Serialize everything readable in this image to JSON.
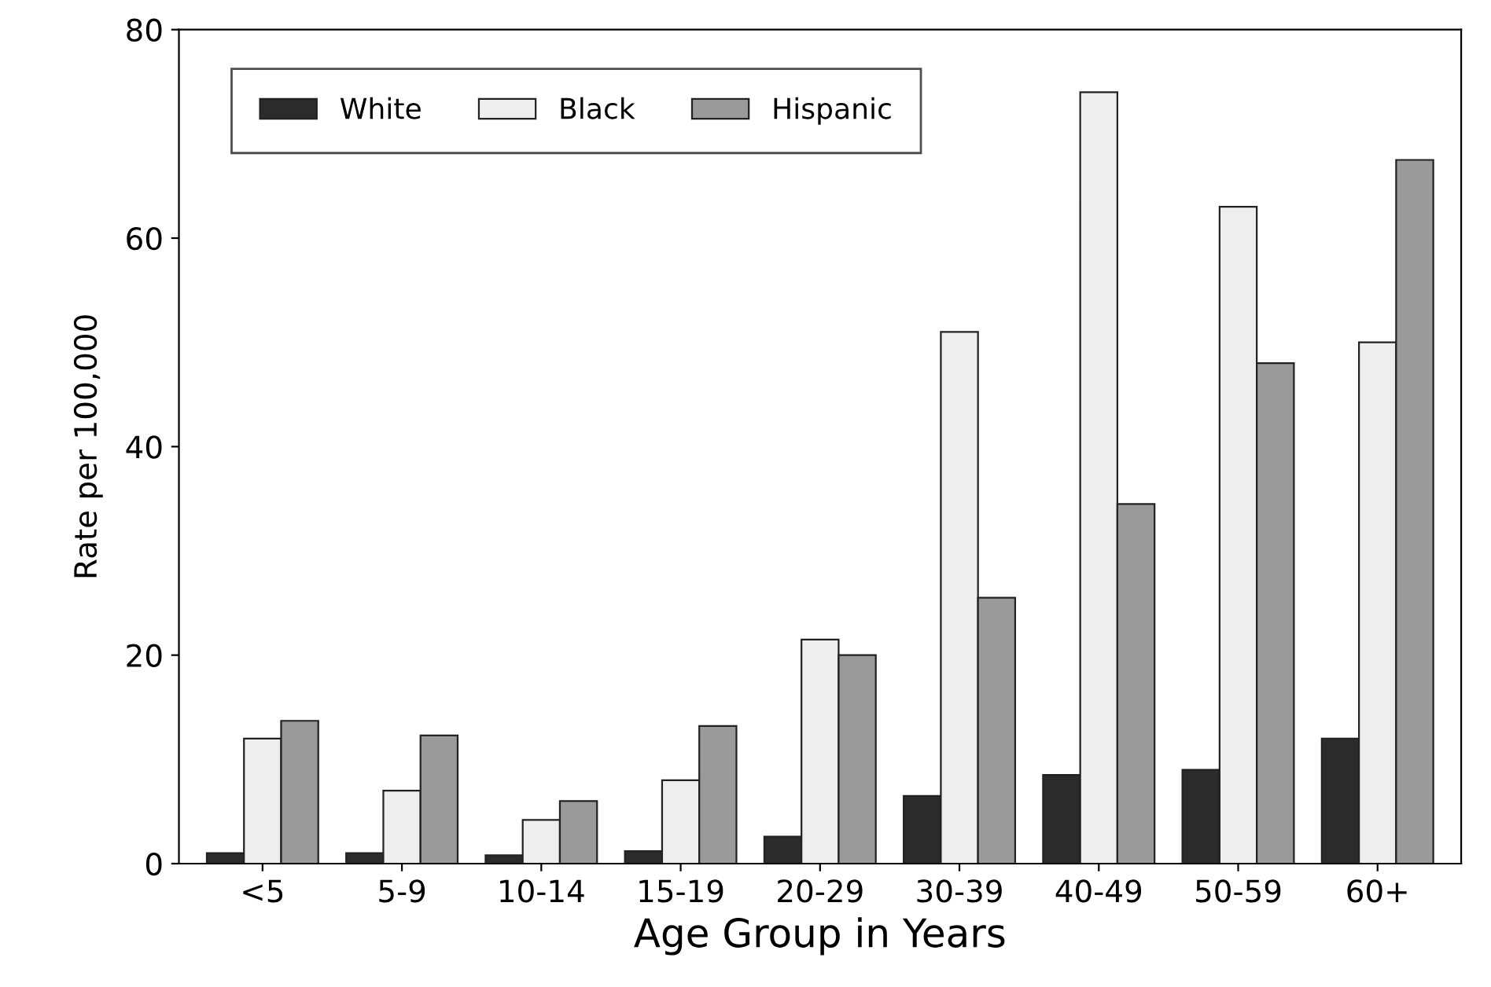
{
  "chart_data": {
    "type": "bar",
    "xlabel": "Age Group in Years",
    "ylabel": "Rate per 100,000",
    "categories": [
      "<5",
      "5-9",
      "10-14",
      "15-19",
      "20-29",
      "30-39",
      "40-49",
      "50-59",
      "60+"
    ],
    "series": [
      {
        "name": "White",
        "color": "#2b2b2b",
        "values": [
          1,
          1,
          0.8,
          1.2,
          2.6,
          6.5,
          8.5,
          9,
          12
        ]
      },
      {
        "name": "Black",
        "color": "#eeeeee",
        "values": [
          12,
          7,
          4.2,
          8,
          21.5,
          51,
          74,
          63,
          50
        ]
      },
      {
        "name": "Hispanic",
        "color": "#9a9a9a",
        "values": [
          13.7,
          12.3,
          6,
          13.2,
          20,
          25.5,
          34.5,
          48,
          67.5
        ]
      }
    ],
    "ylim": [
      0,
      80
    ],
    "yticks": [
      0,
      20,
      40,
      60,
      80
    ],
    "legend": "top left"
  }
}
